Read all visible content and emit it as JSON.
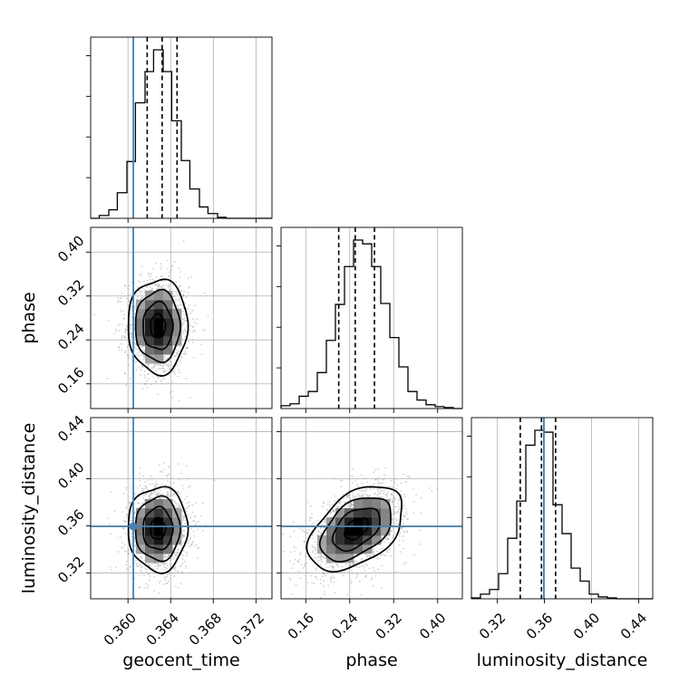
{
  "chart_data": {
    "type": "corner",
    "parameters": [
      "geocent_time",
      "phase",
      "luminosity_distance"
    ],
    "axes": {
      "geocent_time": {
        "range": [
          0.3565,
          0.3735
        ],
        "ticks": [
          0.36,
          0.364,
          0.368,
          0.372
        ],
        "tick_labels": [
          "0.360",
          "0.364",
          "0.368",
          "0.372"
        ],
        "label": "geocent_time"
      },
      "phase": {
        "range": [
          0.115,
          0.445
        ],
        "ticks": [
          0.16,
          0.24,
          0.32,
          0.4
        ],
        "tick_labels": [
          "0.16",
          "0.24",
          "0.32",
          "0.40"
        ],
        "label": "phase"
      },
      "luminosity_distance": {
        "range": [
          0.298,
          0.452
        ],
        "ticks": [
          0.32,
          0.36,
          0.4,
          0.44
        ],
        "tick_labels": [
          "0.32",
          "0.36",
          "0.40",
          "0.44"
        ],
        "label": "luminosity_distance"
      }
    },
    "truths": {
      "geocent_time": 0.3605,
      "luminosity_distance": 0.3595
    },
    "truth_color": "#4682b4",
    "histograms": {
      "geocent_time": {
        "edges": [
          0.3565,
          0.3573,
          0.3582,
          0.359,
          0.3599,
          0.3607,
          0.3616,
          0.3624,
          0.3633,
          0.3641,
          0.365,
          0.3658,
          0.3667,
          0.3675,
          0.3684,
          0.3692,
          0.3701,
          0.3709,
          0.3718,
          0.3726,
          0.3735
        ],
        "counts": [
          0,
          3,
          9,
          27,
          60,
          122,
          155,
          178,
          155,
          103,
          61,
          31,
          12,
          5,
          1,
          0,
          0,
          0,
          0,
          0
        ],
        "quantiles": [
          0.3618,
          0.3632,
          0.3646
        ]
      },
      "phase": {
        "edges": [
          0.115,
          0.1315,
          0.148,
          0.1645,
          0.181,
          0.1975,
          0.214,
          0.2305,
          0.247,
          0.2635,
          0.28,
          0.2965,
          0.313,
          0.3295,
          0.346,
          0.3625,
          0.379,
          0.3955,
          0.412,
          0.4285,
          0.445
        ],
        "counts": [
          3,
          5,
          13,
          18,
          38,
          72,
          110,
          150,
          178,
          174,
          150,
          111,
          75,
          44,
          18,
          9,
          4,
          2,
          1,
          0
        ],
        "quantiles": [
          0.22,
          0.25,
          0.285
        ]
      },
      "luminosity_distance": {
        "edges": [
          0.298,
          0.3057,
          0.3134,
          0.3211,
          0.3288,
          0.3365,
          0.3442,
          0.3519,
          0.3596,
          0.3673,
          0.375,
          0.3827,
          0.3904,
          0.3981,
          0.4058,
          0.4135,
          0.4212,
          0.4289,
          0.4366,
          0.4443,
          0.452
        ],
        "counts": [
          1,
          5,
          10,
          27,
          65,
          105,
          165,
          181,
          179,
          101,
          70,
          33,
          19,
          5,
          2,
          1,
          0,
          0,
          0,
          0
        ],
        "quantiles": [
          0.3395,
          0.3575,
          0.3695
        ]
      }
    },
    "joint": [
      {
        "x": "geocent_time",
        "y": "phase",
        "center": [
          0.3628,
          0.265
        ],
        "sigma": [
          0.0014,
          0.043
        ],
        "rho": 0.0
      },
      {
        "x": "geocent_time",
        "y": "luminosity_distance",
        "center": [
          0.3628,
          0.3575
        ],
        "sigma": [
          0.0014,
          0.018
        ],
        "rho": 0.0
      },
      {
        "x": "phase",
        "y": "luminosity_distance",
        "center": [
          0.252,
          0.3575
        ],
        "sigma": [
          0.043,
          0.018
        ],
        "rho": 0.45
      }
    ],
    "contour_levels_sigma": [
      0.5,
      1.0,
      1.5,
      2.0
    ],
    "grid": true
  }
}
